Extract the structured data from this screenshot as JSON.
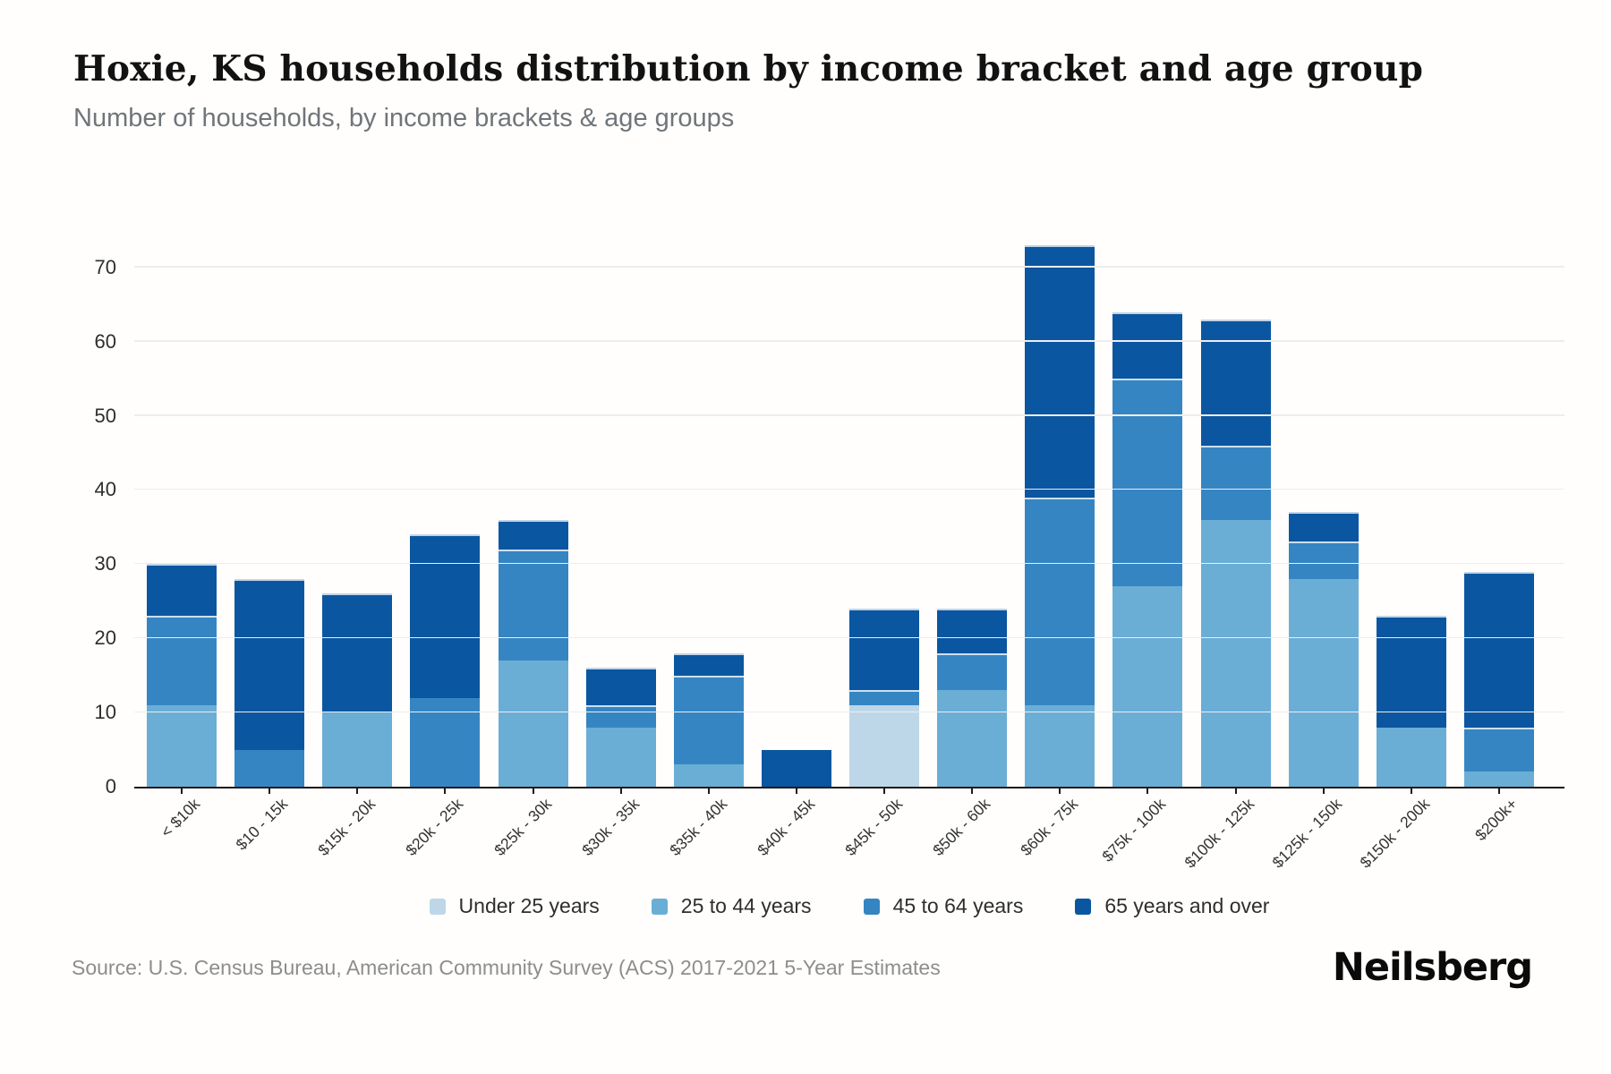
{
  "chart_data": {
    "type": "bar",
    "stacked": true,
    "title": "Hoxie, KS households distribution by income bracket and age group",
    "subtitle": "Number of households, by income brackets & age groups",
    "xlabel": "",
    "ylabel": "",
    "categories": [
      "< $10k",
      "$10 - 15k",
      "$15k - 20k",
      "$20k - 25k",
      "$25k - 30k",
      "$30k - 35k",
      "$35k - 40k",
      "$40k - 45k",
      "$45k - 50k",
      "$50k - 60k",
      "$60k - 75k",
      "$75k - 100k",
      "$100k - 125k",
      "$125k - 150k",
      "$150k - 200k",
      "$200k+"
    ],
    "series": [
      {
        "name": "Under 25 years",
        "color": "#bdd7e8",
        "values": [
          0,
          0,
          0,
          0,
          0,
          0,
          0,
          0,
          11,
          0,
          0,
          0,
          0,
          0,
          0,
          0
        ]
      },
      {
        "name": "25 to 44 years",
        "color": "#6aaed6",
        "values": [
          11,
          0,
          10,
          0,
          17,
          8,
          3,
          0,
          0,
          13,
          11,
          27,
          36,
          28,
          8,
          2
        ]
      },
      {
        "name": "45 to 64 years",
        "color": "#3685c3",
        "values": [
          12,
          5,
          0,
          12,
          15,
          3,
          12,
          0,
          2,
          5,
          28,
          28,
          10,
          5,
          0,
          6
        ]
      },
      {
        "name": "65 years and over",
        "color": "#0b56a0",
        "values": [
          7,
          23,
          16,
          22,
          4,
          5,
          3,
          5,
          11,
          6,
          34,
          9,
          17,
          4,
          15,
          21
        ]
      }
    ],
    "totals": [
      30,
      28,
      26,
      34,
      36,
      16,
      18,
      5,
      24,
      24,
      73,
      64,
      63,
      37,
      23,
      29
    ],
    "yticks": [
      0,
      10,
      20,
      30,
      40,
      50,
      60,
      70
    ],
    "ylim": [
      0,
      76
    ],
    "grid": "horizontal",
    "legend_position": "bottom"
  },
  "footer": {
    "source": "Source: U.S. Census Bureau, American Community Survey (ACS) 2017-2021 5-Year Estimates",
    "logo": "Neilsberg"
  }
}
